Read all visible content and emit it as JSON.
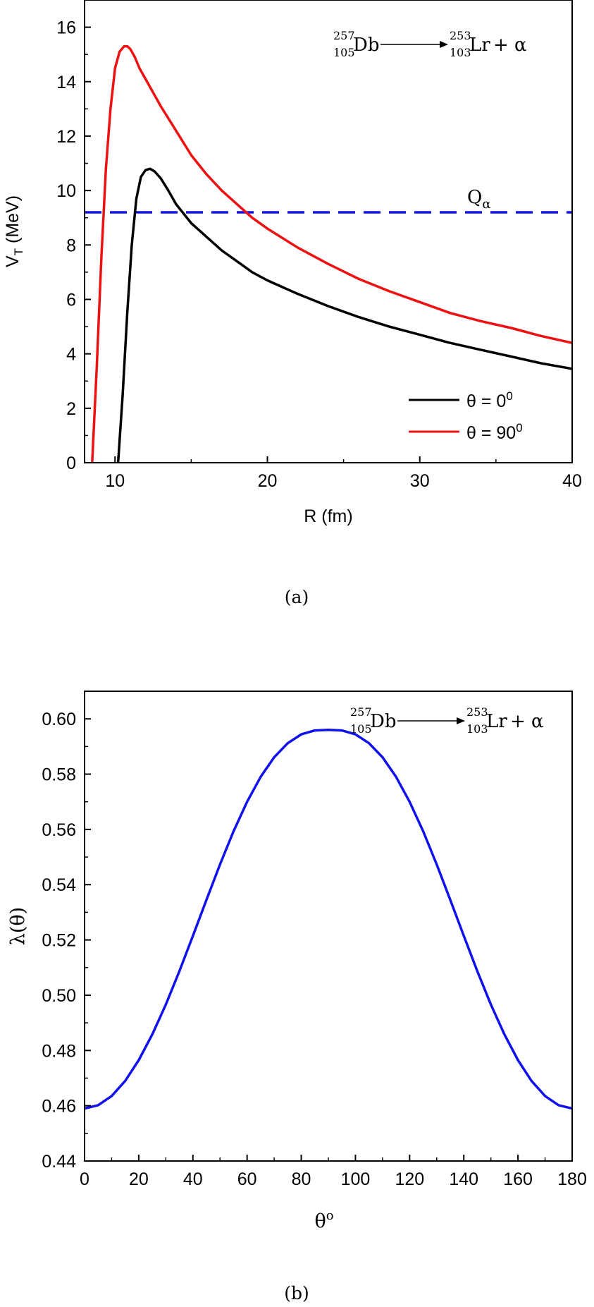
{
  "chart_data": [
    {
      "type": "line",
      "panel_caption": "(a)",
      "xlabel": "R (fm)",
      "ylabel_main": "V",
      "ylabel_sub": "T",
      "ylabel_unit": " (MeV)",
      "xlim": [
        8,
        40
      ],
      "ylim": [
        0,
        17
      ],
      "xticks": [
        10,
        20,
        30,
        40
      ],
      "yticks": [
        0,
        2,
        4,
        6,
        8,
        10,
        12,
        14,
        16
      ],
      "grid": false,
      "legend_position": "bottom-right",
      "reaction": {
        "parent_A": "257",
        "parent_Z": "105",
        "parent_sym": "Db",
        "daughter_A": "253",
        "daughter_Z": "103",
        "daughter_sym": "Lr",
        "emitted": "+ α"
      },
      "q_label_main": "Q",
      "q_label_sub": "α",
      "q_value": 9.2,
      "series": [
        {
          "name_main": "θ = 0",
          "name_sup": "0",
          "color": "#000000",
          "x": [
            10.2,
            10.5,
            10.8,
            11.1,
            11.4,
            11.7,
            12.0,
            12.3,
            12.6,
            13.0,
            13.5,
            14.0,
            15.0,
            16.0,
            17.0,
            18.0,
            19.0,
            20.0,
            22.0,
            24.0,
            26.0,
            28.0,
            30.0,
            32.0,
            34.0,
            36.0,
            38.0,
            40.0
          ],
          "y": [
            0,
            2.5,
            5.5,
            8.0,
            9.7,
            10.5,
            10.75,
            10.8,
            10.7,
            10.45,
            10.0,
            9.5,
            8.8,
            8.3,
            7.8,
            7.4,
            7.0,
            6.7,
            6.2,
            5.75,
            5.35,
            5.0,
            4.7,
            4.4,
            4.15,
            3.9,
            3.65,
            3.45
          ]
        },
        {
          "name_main": "θ = 90",
          "name_sup": "0",
          "color": "#ee1111",
          "x": [
            8.5,
            8.8,
            9.1,
            9.4,
            9.7,
            10.0,
            10.3,
            10.6,
            10.8,
            11.0,
            11.3,
            11.6,
            12.0,
            12.5,
            13.0,
            14.0,
            15.0,
            16.0,
            17.0,
            18.0,
            19.0,
            20.0,
            22.0,
            24.0,
            26.0,
            28.0,
            30.0,
            32.0,
            34.0,
            36.0,
            38.0,
            40.0
          ],
          "y": [
            0,
            3.5,
            7.5,
            10.8,
            13.0,
            14.5,
            15.1,
            15.3,
            15.3,
            15.2,
            14.9,
            14.5,
            14.1,
            13.6,
            13.1,
            12.2,
            11.3,
            10.6,
            10.0,
            9.5,
            9.0,
            8.6,
            7.9,
            7.3,
            6.75,
            6.3,
            5.9,
            5.5,
            5.2,
            4.95,
            4.65,
            4.4
          ]
        }
      ]
    },
    {
      "type": "line",
      "panel_caption": "(b)",
      "xlabel": "θ",
      "xlabel_sup": "o",
      "ylabel": "λ(θ)",
      "xlim": [
        0,
        180
      ],
      "ylim": [
        0.44,
        0.61
      ],
      "xticks": [
        0,
        20,
        40,
        60,
        80,
        100,
        120,
        140,
        160,
        180
      ],
      "yticks": [
        0.44,
        0.46,
        0.48,
        0.5,
        0.52,
        0.54,
        0.56,
        0.58,
        0.6
      ],
      "ytick_labels": [
        "0.44",
        "0.46",
        "0.48",
        "0.50",
        "0.52",
        "0.54",
        "0.56",
        "0.58",
        "0.60"
      ],
      "grid": false,
      "reaction": {
        "parent_A": "257",
        "parent_Z": "105",
        "parent_sym": "Db",
        "daughter_A": "253",
        "daughter_Z": "103",
        "daughter_sym": "Lr",
        "emitted": "+ α"
      },
      "series": [
        {
          "color": "#1111ee",
          "x": [
            0,
            5,
            10,
            15,
            20,
            25,
            30,
            35,
            40,
            45,
            50,
            55,
            60,
            65,
            70,
            75,
            80,
            85,
            90,
            95,
            100,
            105,
            110,
            115,
            120,
            125,
            130,
            135,
            140,
            145,
            150,
            155,
            160,
            165,
            170,
            175,
            180
          ],
          "y": [
            0.459,
            0.4602,
            0.4635,
            0.469,
            0.4765,
            0.4858,
            0.4966,
            0.5087,
            0.5215,
            0.5345,
            0.5473,
            0.5593,
            0.57,
            0.579,
            0.5861,
            0.5912,
            0.5944,
            0.5958,
            0.596,
            0.5958,
            0.5944,
            0.5912,
            0.5861,
            0.579,
            0.57,
            0.5593,
            0.5473,
            0.5345,
            0.5215,
            0.5087,
            0.4966,
            0.4858,
            0.4765,
            0.469,
            0.4635,
            0.4602,
            0.459
          ]
        }
      ]
    }
  ]
}
